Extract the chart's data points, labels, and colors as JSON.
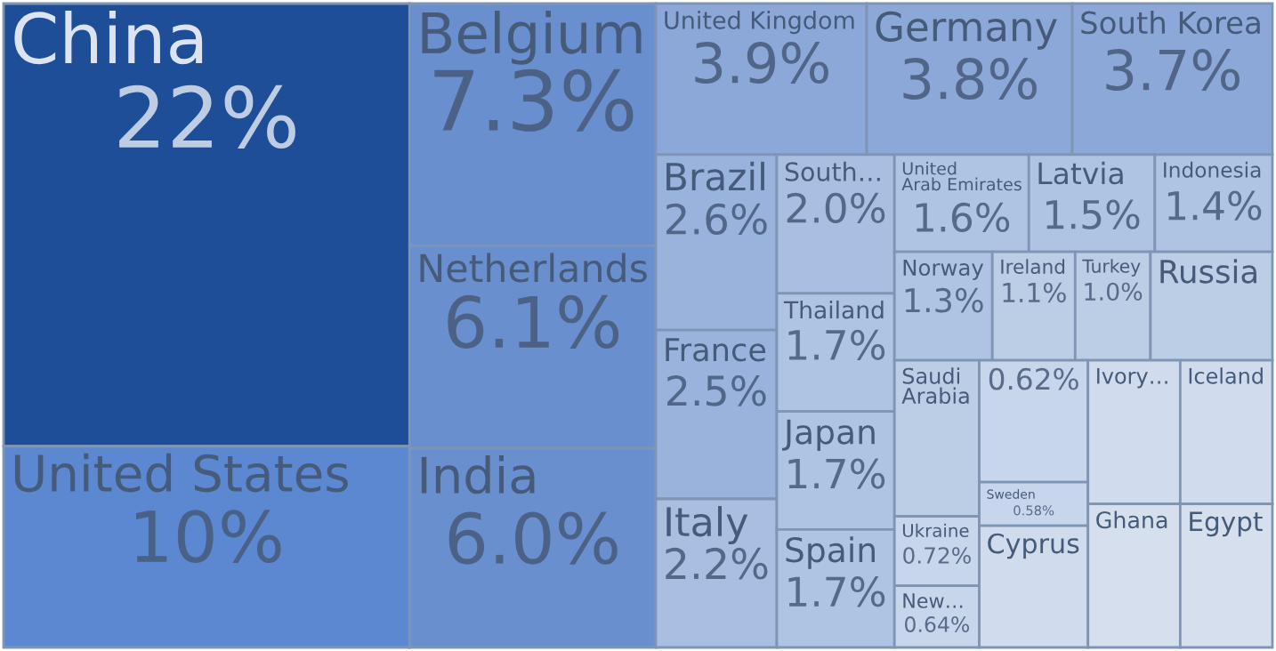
{
  "chart_data": {
    "type": "other",
    "categories": [
      "China",
      "United States",
      "Belgium",
      "Netherlands",
      "India",
      "United Kingdom",
      "Germany",
      "South Korea",
      "Brazil",
      "France",
      "Italy",
      "South…",
      "Thailand",
      "Japan",
      "Spain",
      "United Arab Emirates",
      "Latvia",
      "Indonesia",
      "Norway",
      "Ireland",
      "Turkey",
      "Russia",
      "Saudi Arabia",
      "Ukraine",
      "New…",
      null,
      "Sweden",
      "Cyprus",
      "Ivory…",
      "Iceland",
      "Ghana",
      "Egypt"
    ],
    "values": [
      22,
      10,
      7.3,
      6.1,
      6.0,
      3.9,
      3.8,
      3.7,
      2.6,
      2.5,
      2.2,
      2.0,
      1.7,
      1.7,
      1.7,
      1.6,
      1.5,
      1.4,
      1.3,
      1.1,
      1.0,
      null,
      null,
      0.72,
      0.64,
      null,
      0.58,
      null,
      null,
      null,
      null,
      null
    ],
    "value_labels": [
      "22%",
      "10%",
      "7.3%",
      "6.1%",
      "6.0%",
      "3.9%",
      "3.8%",
      "3.7%",
      "2.6%",
      "2.5%",
      "2.2%",
      "2.0%",
      "1.7%",
      "1.7%",
      "1.7%",
      "1.6%",
      "1.5%",
      "1.4%",
      "1.3%",
      "1.1%",
      "1.0%",
      null,
      null,
      "0.72%",
      "0.64%",
      "0.62%",
      "0.58%",
      null,
      null,
      null,
      null,
      null
    ],
    "colors": [
      "#1f4e99",
      "#5c88d2",
      "#6a8fce",
      "#6a8fce",
      "#6a8fce",
      "#8ba8d8",
      "#8ba8d8",
      "#8ba8d8",
      "#99b3dc",
      "#99b3dc",
      "#a9bfe2",
      "#a9bfe2",
      "#afc3e3",
      "#afc3e3",
      "#afc3e3",
      "#afc3e3",
      "#afc3e3",
      "#afc3e3",
      "#afc3e3",
      "#bccde6",
      "#bccde6",
      "#bccde6",
      "#bccde6",
      "#c8d6eb",
      "#c8d6eb",
      "#c8d6eb",
      "#c8d6eb",
      "#d0dbed",
      "#d0dbed",
      "#d0dbed",
      "#d5dfee",
      "#d5dfee"
    ]
  }
}
